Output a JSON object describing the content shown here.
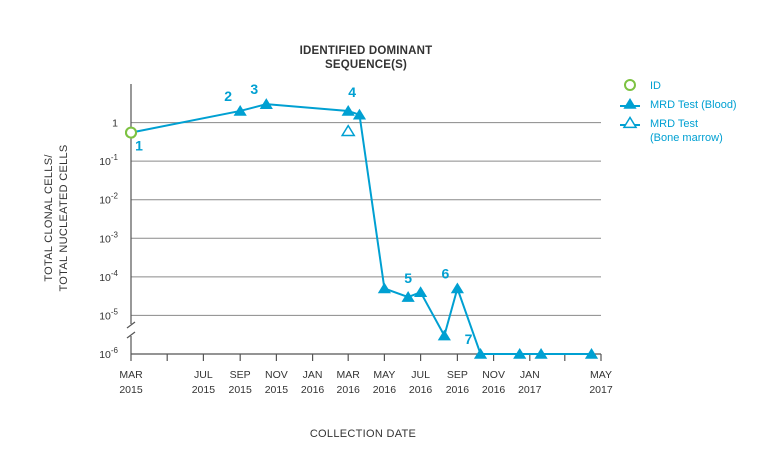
{
  "chart_data": {
    "type": "line",
    "title_lines": [
      "IDENTIFIED DOMINANT",
      "SEQUENCE(S)"
    ],
    "xlabel": "COLLECTION DATE",
    "ylabel_lines": [
      "TOTAL CLONAL CELLS/",
      "TOTAL NUCLEATED CELLS"
    ],
    "y_scale": "log",
    "ylim": [
      1e-06,
      10
    ],
    "y_ticks": [
      {
        "value": 1,
        "base": "1",
        "exp": ""
      },
      {
        "value": 0.1,
        "base": "10",
        "exp": "-1"
      },
      {
        "value": 0.01,
        "base": "10",
        "exp": "-2"
      },
      {
        "value": 0.001,
        "base": "10",
        "exp": "-3"
      },
      {
        "value": 0.0001,
        "base": "10",
        "exp": "-4"
      },
      {
        "value": 1e-05,
        "base": "10",
        "exp": "-5"
      },
      {
        "value": 1e-06,
        "base": "10",
        "exp": "-6"
      }
    ],
    "xlim": [
      "2015-03-01",
      "2017-05-01"
    ],
    "x_ticks": [
      {
        "date": "2015-03-01",
        "month": "MAR",
        "year": "2015"
      },
      {
        "date": "2015-05-01",
        "month": "",
        "year": ""
      },
      {
        "date": "2015-07-01",
        "month": "JUL",
        "year": "2015"
      },
      {
        "date": "2015-09-01",
        "month": "SEP",
        "year": "2015"
      },
      {
        "date": "2015-11-01",
        "month": "NOV",
        "year": "2015"
      },
      {
        "date": "2016-01-01",
        "month": "JAN",
        "year": "2016"
      },
      {
        "date": "2016-03-01",
        "month": "MAR",
        "year": "2016"
      },
      {
        "date": "2016-05-01",
        "month": "MAY",
        "year": "2016"
      },
      {
        "date": "2016-07-01",
        "month": "JUL",
        "year": "2016"
      },
      {
        "date": "2016-09-01",
        "month": "SEP",
        "year": "2016"
      },
      {
        "date": "2016-11-01",
        "month": "NOV",
        "year": "2016"
      },
      {
        "date": "2017-01-01",
        "month": "JAN",
        "year": "2017"
      },
      {
        "date": "2017-03-01",
        "month": "",
        "year": ""
      },
      {
        "date": "2017-05-01",
        "month": "MAY",
        "year": "2017"
      }
    ],
    "grid": "horizontal",
    "legend_position": "top-right",
    "series": [
      {
        "name": "ID",
        "marker": "circle-open",
        "color": "#7dc242",
        "points": [
          {
            "x": "2015-03-01",
            "y": 0.55
          }
        ]
      },
      {
        "name": "MRD Test (Blood)",
        "marker": "triangle-filled",
        "color": "#00a0d2",
        "line": true,
        "points": [
          {
            "x": "2015-03-01",
            "y": 0.55
          },
          {
            "x": "2015-09-01",
            "y": 2.0
          },
          {
            "x": "2015-10-15",
            "y": 3.0
          },
          {
            "x": "2016-03-01",
            "y": 2.0
          },
          {
            "x": "2016-03-20",
            "y": 1.6
          },
          {
            "x": "2016-05-01",
            "y": 5e-05
          },
          {
            "x": "2016-06-10",
            "y": 3e-05
          },
          {
            "x": "2016-07-01",
            "y": 4e-05
          },
          {
            "x": "2016-08-10",
            "y": 3e-06
          },
          {
            "x": "2016-09-01",
            "y": 5e-05
          },
          {
            "x": "2016-10-10",
            "y": 1e-06
          },
          {
            "x": "2016-12-15",
            "y": 1e-06
          },
          {
            "x": "2017-01-20",
            "y": 1e-06
          },
          {
            "x": "2017-04-15",
            "y": 1e-06
          }
        ]
      },
      {
        "name": "MRD Test (Bone marrow)",
        "marker": "triangle-open",
        "color": "#00a0d2",
        "points": [
          {
            "x": "2016-03-01",
            "y": 0.6
          }
        ]
      }
    ],
    "annotations": [
      {
        "text": "1",
        "x": "2015-03-01",
        "y": 0.55,
        "pos": "below-right"
      },
      {
        "text": "2",
        "x": "2015-09-01",
        "y": 2.0,
        "pos": "above-left"
      },
      {
        "text": "3",
        "x": "2015-10-15",
        "y": 3.0,
        "pos": "above-left"
      },
      {
        "text": "4",
        "x": "2016-03-01",
        "y": 2.0,
        "pos": "above-right"
      },
      {
        "text": "5",
        "x": "2016-06-10",
        "y": 3e-05,
        "pos": "above"
      },
      {
        "text": "6",
        "x": "2016-09-01",
        "y": 5e-05,
        "pos": "above-left"
      },
      {
        "text": "7",
        "x": "2016-10-10",
        "y": 1e-06,
        "pos": "above-left"
      }
    ]
  }
}
